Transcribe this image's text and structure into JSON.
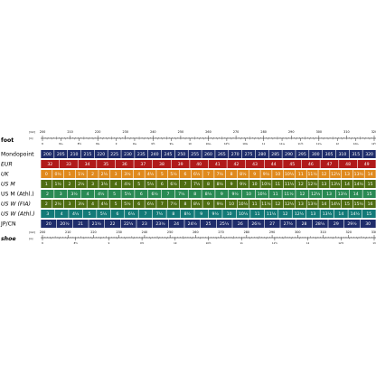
{
  "chart_data": {
    "type": "table",
    "title": "",
    "top_ruler": {
      "label": "foot",
      "unit_labels": [
        "[mm]",
        "[in]"
      ],
      "mm_ticks": [
        "200",
        "210",
        "220",
        "230",
        "240",
        "250",
        "260",
        "270",
        "280",
        "290",
        "300",
        "310",
        "320"
      ],
      "in_ticks": [
        "8",
        "8¼",
        "8½",
        "8¾",
        "9",
        "9¼",
        "9½",
        "9¾",
        "10",
        "10¼",
        "10½",
        "10¾",
        "11",
        "11¼",
        "11½",
        "11¾",
        "12",
        "12¼",
        "12½"
      ]
    },
    "bottom_ruler": {
      "label": "shoe",
      "unit_labels": [
        "[mm]",
        "[in]"
      ],
      "mm_ticks": [
        "200",
        "210",
        "220",
        "230",
        "240",
        "250",
        "260",
        "270",
        "280",
        "290",
        "300",
        "310",
        "320",
        "330"
      ],
      "in_ticks": [
        "8",
        "8½",
        "9",
        "9½",
        "10",
        "10½",
        "11",
        "11½",
        "12",
        "12½",
        "13"
      ]
    },
    "rows": [
      {
        "label": "Mondopoint",
        "color": "#1f2d6b",
        "cells": [
          "200",
          "205",
          "210",
          "215",
          "220",
          "225",
          "230",
          "235",
          "240",
          "245",
          "250",
          "255",
          "260",
          "265",
          "270",
          "275",
          "280",
          "285",
          "290",
          "295",
          "300",
          "305",
          "310",
          "315",
          "320"
        ]
      },
      {
        "label": "EUR",
        "color": "#b11a1a",
        "cells": [
          "32",
          "33",
          "34",
          "35",
          "36",
          "37",
          "38",
          "39",
          "40",
          "41",
          "42",
          "43",
          "44",
          "45",
          "46",
          "47",
          "48",
          "49"
        ]
      },
      {
        "label": "UK",
        "color": "#e08a1e",
        "cells": [
          "0",
          "0½",
          "1",
          "1½",
          "2",
          "2½",
          "3",
          "3½",
          "4",
          "4½",
          "5",
          "5½",
          "6",
          "6½",
          "7",
          "7½",
          "8",
          "8½",
          "9",
          "9½",
          "10",
          "10½",
          "11",
          "11½",
          "12",
          "12½",
          "13",
          "13½",
          "14"
        ]
      },
      {
        "label": "US M",
        "color": "#4f6d12",
        "cells": [
          "1",
          "1½",
          "2",
          "2½",
          "3",
          "3½",
          "4",
          "4½",
          "5",
          "5½",
          "6",
          "6½",
          "7",
          "7½",
          "8",
          "8½",
          "9",
          "9½",
          "10",
          "10½",
          "11",
          "11½",
          "12",
          "12½",
          "13",
          "13½",
          "14",
          "14½",
          "15"
        ]
      },
      {
        "label": "US M (Athl.)",
        "color": "#2a8a54",
        "cells": [
          "2",
          "3",
          "3½",
          "4",
          "4½",
          "5",
          "5½",
          "6",
          "6½",
          "7",
          "7½",
          "8",
          "8½",
          "9",
          "9½",
          "10",
          "10½",
          "11",
          "11½",
          "12",
          "12½",
          "13",
          "13½",
          "14",
          "15"
        ]
      },
      {
        "label": "US W (FIA)",
        "color": "#4f6d12",
        "cells": [
          "2",
          "2½",
          "3",
          "3½",
          "4",
          "4½",
          "5",
          "5½",
          "6",
          "6½",
          "7",
          "7½",
          "8",
          "8½",
          "9",
          "9½",
          "10",
          "10½",
          "11",
          "11½",
          "12",
          "12½",
          "13",
          "13½",
          "14",
          "14½",
          "15",
          "15½",
          "16"
        ]
      },
      {
        "label": "US W (Athl.)",
        "color": "#137a78",
        "cells": [
          "3",
          "4",
          "4½",
          "5",
          "5½",
          "6",
          "6½",
          "7",
          "7½",
          "8",
          "8½",
          "9",
          "9½",
          "10",
          "10½",
          "11",
          "11½",
          "12",
          "12½",
          "13",
          "13½",
          "14",
          "14½",
          "15"
        ]
      },
      {
        "label": "JP/CN",
        "color": "#1f2d6b",
        "cells": [
          "20",
          "20½",
          "21",
          "21½",
          "22",
          "22½",
          "23",
          "23½",
          "24",
          "24½",
          "25",
          "25½",
          "26",
          "26½",
          "27",
          "27½",
          "28",
          "28½",
          "29",
          "29½",
          "30"
        ]
      }
    ]
  }
}
